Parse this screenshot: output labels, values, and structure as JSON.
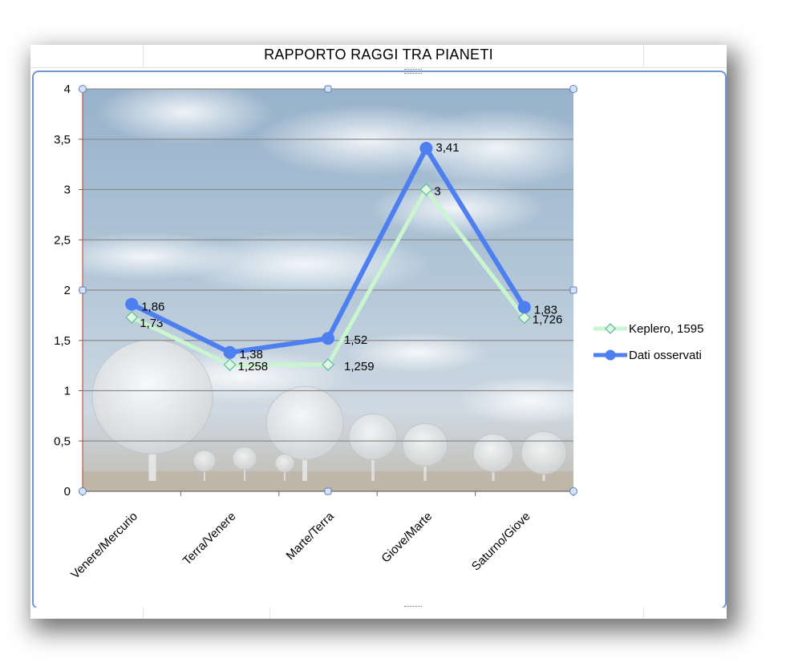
{
  "chart_data": {
    "type": "line",
    "title": "RAPPORTO RAGGI TRA PIANETI",
    "categories": [
      "Venere/Mercurio",
      "Terra/Venere",
      "Marte/Terra",
      "Giove/Marte",
      "Saturno/Giove"
    ],
    "ylim": [
      0,
      4
    ],
    "yticks": [
      "0",
      "0,5",
      "1",
      "1,5",
      "2",
      "2,5",
      "3",
      "3,5",
      "4"
    ],
    "ytick_values": [
      0,
      0.5,
      1,
      1.5,
      2,
      2.5,
      3,
      3.5,
      4
    ],
    "grid": true,
    "legend_position": "right",
    "series": [
      {
        "name": "Keplero, 1595",
        "values": [
          1.73,
          1.258,
          1.259,
          3,
          1.726
        ],
        "labels": [
          "1,73",
          "1,258",
          "1,259",
          "3",
          "1,726"
        ],
        "color": "#c9f5cf",
        "marker": "diamond"
      },
      {
        "name": "Dati osservati",
        "values": [
          1.86,
          1.38,
          1.52,
          3.41,
          1.83
        ],
        "labels": [
          "1,86",
          "1,38",
          "1,52",
          "3,41",
          "1,83"
        ],
        "color": "#4d7ff0",
        "marker": "circle"
      }
    ]
  },
  "colors": {
    "frame_border": "#6f97d3",
    "gridline": "#8c8c8c",
    "plot_sky_top": "#7fa0bf",
    "plot_sky_bottom": "#cfd9e2"
  }
}
